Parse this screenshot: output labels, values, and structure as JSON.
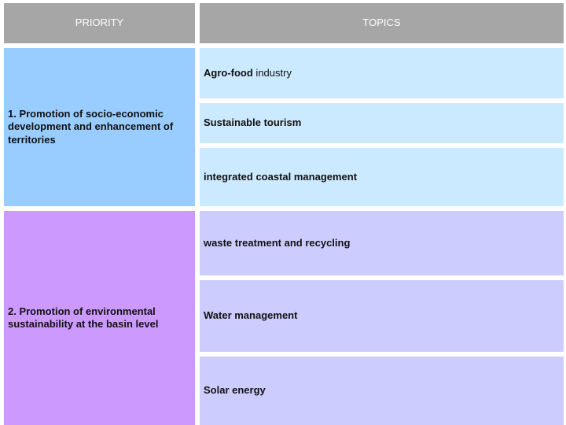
{
  "headers": {
    "priority": "PRIORITY",
    "topics": "TOPICS"
  },
  "priorities": [
    {
      "label": "1. Promotion of socio-economic development and enhancement of territories"
    },
    {
      "label": "2. Promotion of environmental sustainability at the basin level"
    }
  ],
  "topics": [
    {
      "bold": "Agro-food",
      "normal": " industry"
    },
    {
      "label": "Sustainable tourism"
    },
    {
      "label": "integrated coastal management"
    },
    {
      "label": "waste treatment and recycling"
    },
    {
      "label": "Water management"
    },
    {
      "label": "Solar energy"
    }
  ],
  "colors": {
    "header": "#a6a6a6",
    "priority_1": "#99ccff",
    "priority_2": "#cc99ff",
    "topics_1": "#cceaff",
    "topics_2": "#ccccff"
  }
}
